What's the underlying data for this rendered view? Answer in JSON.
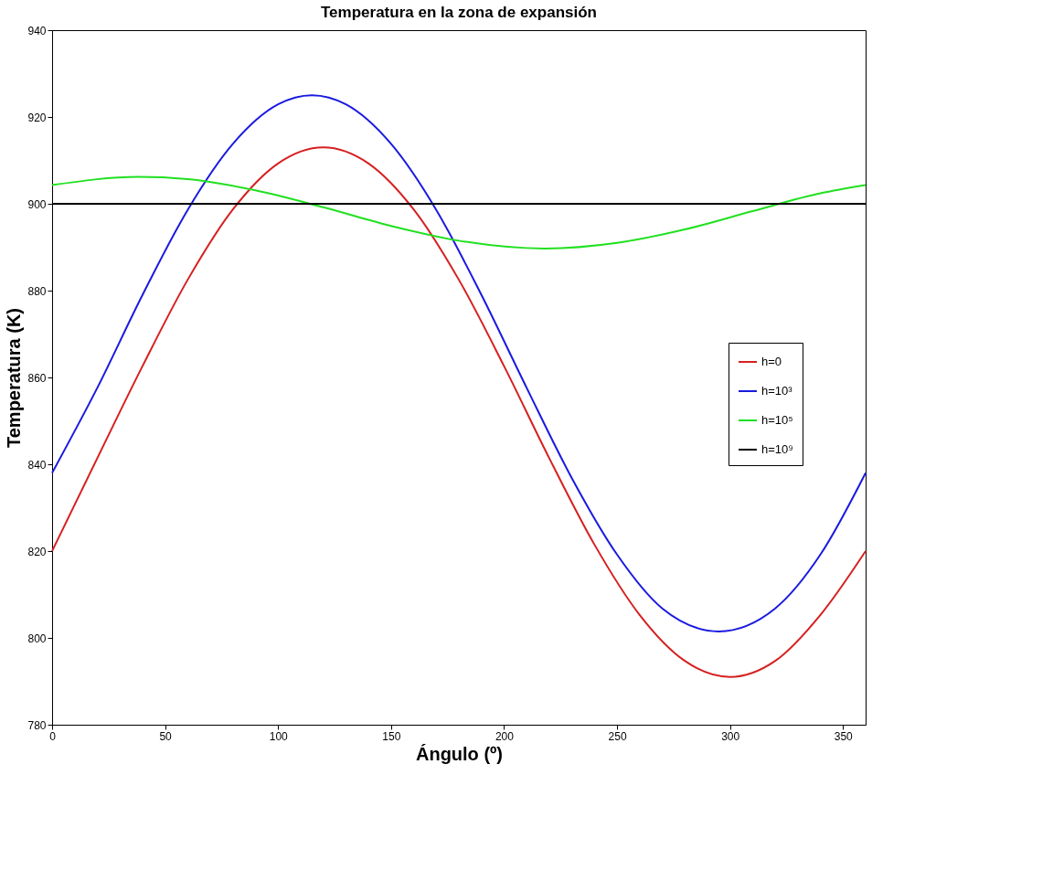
{
  "chart_data": {
    "type": "line",
    "title": "Temperatura en la zona de expansión",
    "xlabel": "Ángulo (º)",
    "ylabel": "Temperatura (K)",
    "xlim": [
      0,
      360
    ],
    "xticks": [
      0,
      50,
      100,
      150,
      200,
      250,
      300,
      350
    ],
    "ylim": [
      780,
      940
    ],
    "yticks": [
      780,
      800,
      820,
      840,
      860,
      880,
      900,
      920,
      940
    ],
    "grid": false,
    "legend": "right",
    "marker": "none",
    "line_style": "solid",
    "series": [
      {
        "name": "h=0",
        "color": "#d62020",
        "x": [
          0,
          20,
          40,
          60,
          80,
          100,
          120,
          140,
          160,
          180,
          200,
          220,
          240,
          260,
          280,
          300,
          320,
          340,
          360
        ],
        "values": [
          820,
          841.4,
          862.6,
          882.5,
          898.7,
          909.3,
          913,
          909.3,
          898.7,
          882.5,
          862.6,
          841.4,
          821.5,
          805.3,
          794.7,
          791,
          794.7,
          805.3,
          820
        ]
      },
      {
        "name": "h=10³",
        "color": "#1a1ae0",
        "x": [
          0,
          20,
          40,
          60,
          80,
          100,
          115,
          130,
          150,
          170,
          190,
          210,
          230,
          250,
          270,
          295,
          320,
          340,
          360
        ],
        "values": [
          838,
          857.6,
          879,
          898.6,
          913.8,
          922.9,
          925,
          922.9,
          913.8,
          898.6,
          879,
          857.6,
          836.8,
          819.2,
          806.8,
          801.5,
          806.8,
          819.2,
          838
        ]
      },
      {
        "name": "h=10⁵",
        "color": "#20e020",
        "x": [
          0,
          38,
          60,
          90,
          120,
          150,
          180,
          218,
          250,
          280,
          310,
          340,
          360
        ],
        "values": [
          904.3,
          906.2,
          905.7,
          903.1,
          899.2,
          894.9,
          891.5,
          889.7,
          891,
          894.1,
          898.3,
          902.4,
          904.3
        ]
      },
      {
        "name": "h=10⁹",
        "color": "#000000",
        "x": [
          0,
          360
        ],
        "values": [
          900,
          900
        ]
      }
    ]
  }
}
